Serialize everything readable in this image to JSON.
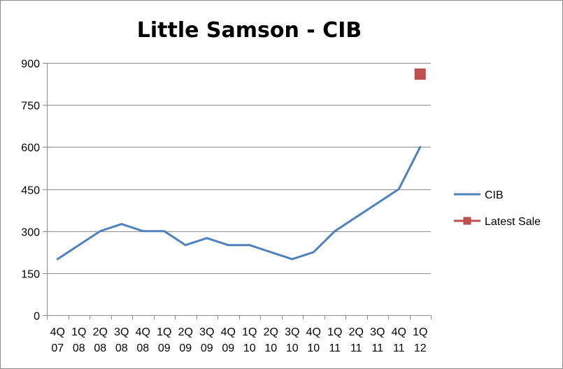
{
  "chart_data": {
    "type": "line",
    "title": "Little Samson - CIB",
    "xlabel": "",
    "ylabel": "",
    "ylim": [
      0,
      900
    ],
    "yticks": [
      0,
      150,
      300,
      450,
      600,
      750,
      900
    ],
    "grid": true,
    "legend_position": "right",
    "categories": [
      [
        "4Q",
        "07"
      ],
      [
        "1Q",
        "08"
      ],
      [
        "2Q",
        "08"
      ],
      [
        "3Q",
        "08"
      ],
      [
        "4Q",
        "08"
      ],
      [
        "1Q",
        "09"
      ],
      [
        "2Q",
        "09"
      ],
      [
        "3Q",
        "09"
      ],
      [
        "4Q",
        "09"
      ],
      [
        "1Q",
        "10"
      ],
      [
        "2Q",
        "10"
      ],
      [
        "3Q",
        "10"
      ],
      [
        "4Q",
        "10"
      ],
      [
        "1Q",
        "11"
      ],
      [
        "2Q",
        "11"
      ],
      [
        "3Q",
        "11"
      ],
      [
        "4Q",
        "11"
      ],
      [
        "1Q",
        "12"
      ]
    ],
    "series": [
      {
        "name": "CIB",
        "color": "#4f81bd",
        "marker": "none",
        "values": [
          200,
          250,
          300,
          325,
          300,
          300,
          250,
          275,
          250,
          250,
          225,
          200,
          225,
          300,
          350,
          400,
          450,
          600
        ]
      },
      {
        "name": "Latest Sale",
        "color": "#c0504d",
        "marker": "square",
        "points": [
          {
            "x_index": 17,
            "y": 860
          }
        ]
      }
    ]
  }
}
